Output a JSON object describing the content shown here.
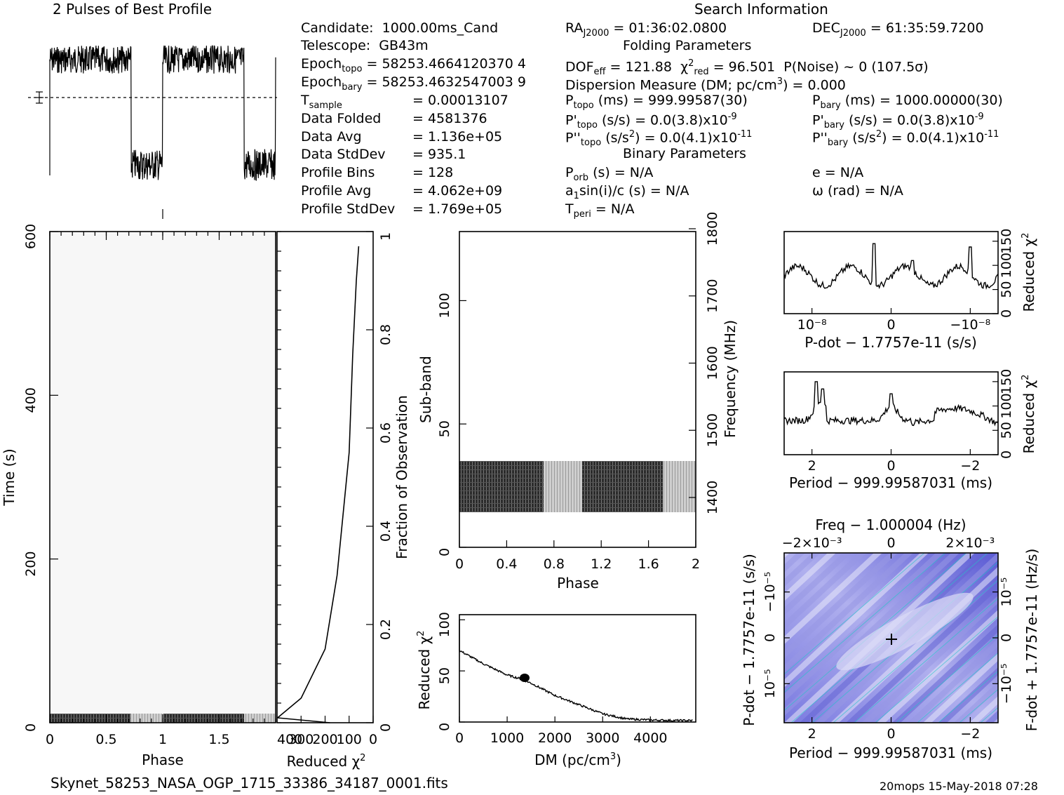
{
  "header": {
    "profile_title": "2 Pulses of Best Profile",
    "search_title": "Search Information",
    "folding_title": "Folding Parameters",
    "binary_title": "Binary Parameters",
    "filename": "Skynet_58253_NASA_OGP_1715_33386_34187_0001.fits",
    "stamp": "20mops 15-May-2018 07:28"
  },
  "info_left": [
    {
      "key": "Candidate:",
      "val": "1000.00ms_Cand"
    },
    {
      "key": "Telescope:",
      "val": "GB43m"
    },
    {
      "key": "Epoch",
      "sub": "topo",
      "val": "= 58253.4664120370 4"
    },
    {
      "key": "Epoch",
      "sub": "bary",
      "val": "= 58253.4632547003 9"
    },
    {
      "key": "T",
      "sub": "sample",
      "val": "=    0.00013107"
    },
    {
      "key": "Data Folded",
      "val": "=    4581376"
    },
    {
      "key": "Data Avg",
      "val": "=    1.136e+05"
    },
    {
      "key": "Data StdDev",
      "val": "=    935.1"
    },
    {
      "key": "Profile Bins",
      "val": "=    128"
    },
    {
      "key": "Profile Avg",
      "val": "=    4.062e+09"
    },
    {
      "key": "Profile StdDev",
      "val": "=    1.769e+05"
    }
  ],
  "info_mid": {
    "ra": "RA",
    "ra_sub": "J2000",
    "ra_val": "= 01:36:02.0800",
    "dec": "DEC",
    "dec_sub": "J2000",
    "dec_val": "= 61:35:59.7200",
    "dof": "DOF",
    "dof_sub": "eff",
    "dof_val": "= 121.88",
    "chi": "χ",
    "chi_sup": "2",
    "chi_sub": "red",
    "chi_val": "= 96.501",
    "pnoise": "P(Noise) ~ 0    (107.5σ)",
    "dm_line": "Dispersion Measure (DM; pc/cm",
    "dm_sup": "3",
    "dm_val": ") = 0.000",
    "ptopo": "P",
    "ptopo_sub": "topo",
    "ptopo_val": "(ms) =  999.99587(30)",
    "pbary": "P",
    "pbary_sub": "bary",
    "pbary_val": "(ms) =  1000.00000(30)",
    "pdtopo": "P'",
    "pdtopo_sub": "topo",
    "pdtopo_val": "(s/s) = 0.0(3.8)x10",
    "pdtopo_exp": "-9",
    "pdbary": "P'",
    "pdbary_sub": "bary",
    "pdbary_val": "(s/s) = 0.0(3.8)x10",
    "pdbary_exp": "-9",
    "pddtopo": "P''",
    "pddtopo_sub": "topo",
    "pddtopo_val": "(s/s",
    "pddtopo_sup": "2",
    "pddtopo_val2": ") = 0.0(4.1)x10",
    "pddtopo_exp": "-11",
    "pddbary": "P''",
    "pddbary_sub": "bary",
    "pddbary_val": "(s/s",
    "pddbary_sup": "2",
    "pddbary_val2": ") = 0.0(4.1)x10",
    "pddbary_exp": "-11",
    "porb": "P",
    "porb_sub": "orb",
    "porb_val": "(s) = N/A",
    "ecc": "e = N/A",
    "a1": "a",
    "a1_sub": "1",
    "a1_val": "sin(i)/c (s) = N/A",
    "omega": "ω (rad) = N/A",
    "tperi": "T",
    "tperi_sub": "peri",
    "tperi_val": "= N/A"
  },
  "chart_data": [
    {
      "type": "line",
      "name": "pulse-profile",
      "title": "2 Pulses of Best Profile",
      "x": [
        0,
        0.1,
        0.2,
        0.3,
        0.4,
        0.5,
        0.6,
        0.7,
        0.72,
        0.8,
        0.9,
        1.0,
        1.1,
        1.2,
        1.3,
        1.4,
        1.5,
        1.6,
        1.7,
        1.72,
        1.8,
        1.9,
        2.0
      ],
      "values": [
        0.75,
        0.8,
        0.82,
        0.78,
        0.8,
        0.82,
        0.78,
        0.8,
        0.2,
        0.25,
        0.2,
        0.22,
        0.78,
        0.82,
        0.8,
        0.78,
        0.8,
        0.82,
        0.8,
        0.2,
        0.25,
        0.2,
        0.22
      ],
      "xlim": [
        0,
        2
      ]
    },
    {
      "type": "heatmap",
      "name": "time-vs-phase",
      "xlabel": "Phase",
      "ylabel": "Time (s)",
      "xticks": [
        "0",
        "0.5",
        "1",
        "1.5"
      ],
      "yticks": [
        "0",
        "200",
        "400",
        "600"
      ],
      "xlim": [
        0,
        2
      ],
      "ylim": [
        0,
        600
      ]
    },
    {
      "type": "line",
      "name": "reduced-chi2-vs-fraction",
      "xlabel": "Reduced χ2",
      "ylabel": "Fraction of Observation",
      "xticks": [
        "400",
        "300",
        "200",
        "100",
        "0"
      ],
      "yticks": [
        "0",
        "0.2",
        "0.4",
        "0.6",
        "0.8",
        "1"
      ],
      "x": [
        60,
        70,
        85,
        100,
        150,
        200,
        300,
        398
      ],
      "y": [
        0.97,
        0.9,
        0.75,
        0.55,
        0.3,
        0.15,
        0.05,
        0.01
      ]
    },
    {
      "type": "heatmap",
      "name": "subband-vs-phase",
      "xlabel": "Phase",
      "ylabel": "Sub-band",
      "y2label": "Frequency (MHz)",
      "xticks": [
        "0",
        "0.4",
        "0.8",
        "1.2",
        "1.6",
        "2"
      ],
      "yticks": [
        "0",
        "50",
        "100"
      ],
      "y2ticks": [
        "1400",
        "1500",
        "1600",
        "1700",
        "1800"
      ],
      "band_rows": [
        14,
        35
      ]
    },
    {
      "type": "line",
      "name": "chi2-vs-dm",
      "xlabel": "DM (pc/cm3)",
      "ylabel": "Reduced χ2",
      "xticks": [
        "0",
        "1000",
        "2000",
        "3000",
        "4000"
      ],
      "yticks": [
        "0",
        "50",
        "100"
      ],
      "x": [
        0,
        500,
        1000,
        1300,
        1500,
        2000,
        2500,
        3000,
        3500,
        4000,
        4500,
        4900
      ],
      "y": [
        70,
        57,
        46,
        42,
        38,
        26,
        17,
        8,
        3,
        2,
        1.5,
        1.5
      ]
    },
    {
      "type": "line",
      "name": "chi2-vs-pdot",
      "xlabel": "P-dot − 1.7757e-11 (s/s)",
      "ylabel": "Reduced χ2",
      "xticks": [
        "10⁻⁸",
        "0",
        "−10⁻⁸"
      ],
      "yticks": [
        "0",
        "50",
        "100",
        "150"
      ]
    },
    {
      "type": "line",
      "name": "chi2-vs-period",
      "xlabel": "Period − 999.99587031 (ms)",
      "ylabel": "Reduced χ2",
      "xticks": [
        "2",
        "0",
        "−2"
      ],
      "yticks": [
        "0",
        "50",
        "100",
        "150"
      ]
    },
    {
      "type": "heatmap",
      "name": "pdot-vs-period",
      "title": "Freq − 1.000004 (Hz)",
      "xlabel": "Period − 999.99587031 (ms)",
      "ylabel": "P-dot − 1.7757e-11 (s/s)",
      "y2label": "F-dot + 1.7757e-11 (Hz/s)",
      "xticks": [
        "2",
        "0",
        "−2"
      ],
      "x2ticks": [
        "−2×10⁻³",
        "0",
        "2×10⁻³"
      ],
      "yticks": [
        "10⁻⁵",
        "0",
        "−10⁻⁵"
      ],
      "y2ticks": [
        "−10⁻⁵",
        "0",
        "10⁻⁵"
      ]
    }
  ],
  "colors": {
    "heat": "#6a6ad8",
    "light": "#dcdcf6",
    "cyan": "#22c8c8"
  }
}
